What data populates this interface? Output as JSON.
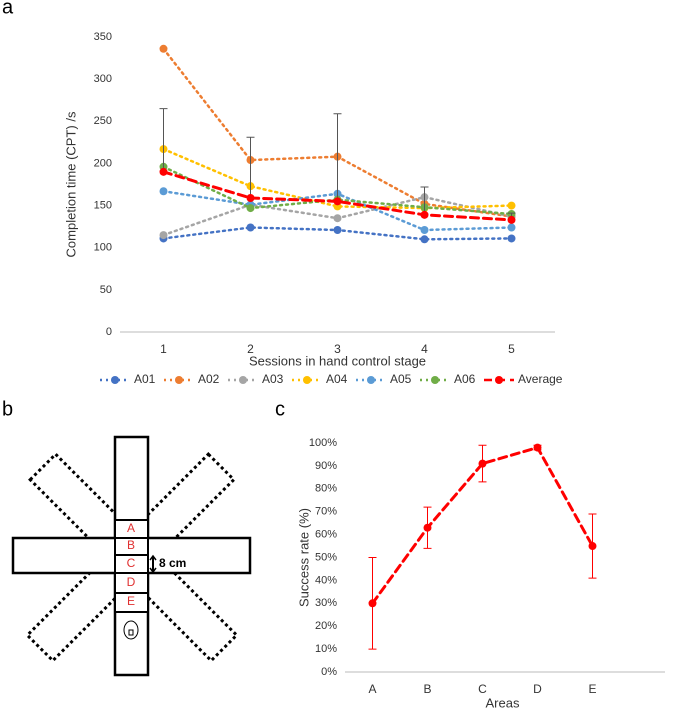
{
  "chart_data": [
    {
      "type": "line",
      "panel": "a",
      "xlabel": "Sessions in hand control stage",
      "ylabel": "Completion time (CPT) /s",
      "categories": [
        1,
        2,
        3,
        4,
        5
      ],
      "ylim": [
        0,
        350
      ],
      "yticks": [
        0,
        50,
        100,
        150,
        200,
        250,
        300,
        350
      ],
      "grid": false,
      "legend": "bottom",
      "series": [
        {
          "name": "A01",
          "color": "#4472c4",
          "values": [
            111,
            124,
            121,
            110,
            111
          ]
        },
        {
          "name": "A02",
          "color": "#ed7d31",
          "values": [
            336,
            204,
            208,
            152,
            137
          ]
        },
        {
          "name": "A03",
          "color": "#a5a5a5",
          "values": [
            115,
            151,
            135,
            160,
            137
          ]
        },
        {
          "name": "A04",
          "color": "#ffc000",
          "values": [
            217,
            173,
            149,
            147,
            150
          ]
        },
        {
          "name": "A05",
          "color": "#5b9bd5",
          "values": [
            167,
            151,
            164,
            121,
            124
          ]
        },
        {
          "name": "A06",
          "color": "#70ad47",
          "values": [
            196,
            147,
            157,
            148,
            140
          ]
        },
        {
          "name": "Average",
          "color": "#ff0000",
          "values": [
            190,
            159,
            155,
            139,
            133
          ],
          "errors": [
            75,
            72,
            104,
            33,
            8
          ]
        }
      ]
    },
    {
      "type": "line",
      "panel": "c",
      "xlabel": "Areas",
      "ylabel": "Success  rate (%)",
      "categories": [
        "A",
        "B",
        "C",
        "D",
        "E"
      ],
      "ylim": [
        0,
        100
      ],
      "grid": false,
      "yticks": [
        {
          "value": 0,
          "label": "0%"
        },
        {
          "value": 10,
          "label": "10%"
        },
        {
          "value": 20,
          "label": "20%"
        },
        {
          "value": 30,
          "label": "30%"
        },
        {
          "value": 40,
          "label": "40%"
        },
        {
          "value": 50,
          "label": "50%"
        },
        {
          "value": 60,
          "label": "60%"
        },
        {
          "value": 70,
          "label": "70%"
        },
        {
          "value": 80,
          "label": "80%"
        },
        {
          "value": 90,
          "label": "90%"
        },
        {
          "value": 100,
          "label": "100%"
        }
      ],
      "series": [
        {
          "color": "#ff0000",
          "values": [
            30,
            63,
            91,
            98,
            55
          ],
          "errors": [
            20,
            9,
            8,
            1,
            14
          ]
        }
      ]
    }
  ],
  "diagram": {
    "panel": "b",
    "zones": [
      "A",
      "B",
      "C",
      "D",
      "E"
    ],
    "scale": "8 cm"
  }
}
